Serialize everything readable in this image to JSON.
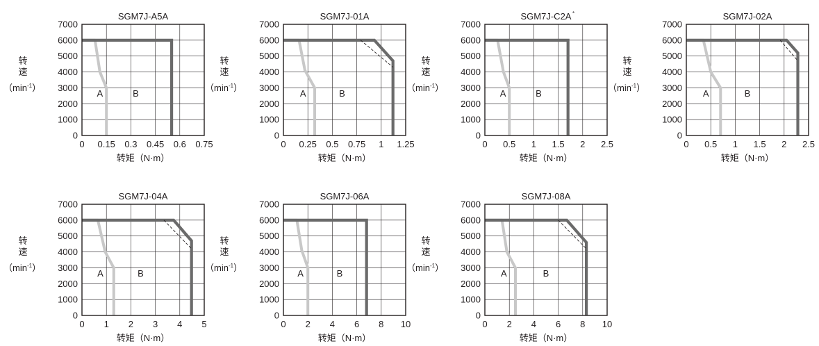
{
  "chart_data": [
    {
      "type": "line",
      "title": "SGM7J-A5A",
      "xlabel": "转矩（N·m）",
      "ylabel": [
        "转",
        "速",
        "（min",
        "-1",
        "）"
      ],
      "xlim": [
        0,
        0.75
      ],
      "ylim": [
        0,
        7000
      ],
      "xticks": [
        "0",
        "0.15",
        "0.3",
        "0.45",
        "0.6",
        "0.75"
      ],
      "yticks": [
        "0",
        "1000",
        "2000",
        "3000",
        "4000",
        "5000",
        "6000",
        "7000"
      ],
      "grid": true,
      "region_labels": [
        {
          "text": "A",
          "x": 0.11,
          "y": 2450
        },
        {
          "text": "B",
          "x": 0.33,
          "y": 2450
        }
      ],
      "series": [
        {
          "kind": "continuous",
          "color": "#c8c8c8",
          "points": [
            [
              0,
              6000
            ],
            [
              0.08,
              6000
            ],
            [
              0.11,
              4000
            ],
            [
              0.15,
              3000
            ],
            [
              0.15,
              0
            ]
          ]
        },
        {
          "kind": "intermittent",
          "color": "#6a6a6a",
          "points": [
            [
              0,
              6000
            ],
            [
              0.55,
              6000
            ],
            [
              0.55,
              0
            ]
          ]
        },
        {
          "kind": "dashed",
          "color": "#231f20",
          "points": []
        }
      ]
    },
    {
      "type": "line",
      "title": "SGM7J-01A",
      "xlabel": "转矩（N·m）",
      "ylabel": [
        "转",
        "速",
        "（min",
        "-1",
        "）"
      ],
      "xlim": [
        0,
        1.25
      ],
      "ylim": [
        0,
        7000
      ],
      "xticks": [
        "0",
        "0.25",
        "0.5",
        "0.75",
        "1",
        "1.25"
      ],
      "yticks": [
        "0",
        "1000",
        "2000",
        "3000",
        "4000",
        "5000",
        "6000",
        "7000"
      ],
      "grid": true,
      "region_labels": [
        {
          "text": "A",
          "x": 0.2,
          "y": 2450
        },
        {
          "text": "B",
          "x": 0.6,
          "y": 2450
        }
      ],
      "series": [
        {
          "kind": "continuous",
          "color": "#c8c8c8",
          "points": [
            [
              0,
              6000
            ],
            [
              0.16,
              6000
            ],
            [
              0.22,
              4100
            ],
            [
              0.32,
              3000
            ],
            [
              0.32,
              0
            ]
          ]
        },
        {
          "kind": "intermittent",
          "color": "#6a6a6a",
          "points": [
            [
              0,
              6000
            ],
            [
              0.93,
              6000
            ],
            [
              1.12,
              4700
            ],
            [
              1.12,
              0
            ]
          ]
        },
        {
          "kind": "dashed",
          "color": "#231f20",
          "points": [
            [
              0.79,
              6000
            ],
            [
              1.12,
              4300
            ]
          ]
        }
      ]
    },
    {
      "type": "line",
      "title": "SGM7J-C2A",
      "title_mark": "*",
      "xlabel": "转矩（N·m）",
      "ylabel": [
        "转",
        "速",
        "（min",
        "-1",
        "）"
      ],
      "xlim": [
        0,
        2.5
      ],
      "ylim": [
        0,
        7000
      ],
      "xticks": [
        "0",
        "0.5",
        "1",
        "1.5",
        "2",
        "2.5"
      ],
      "yticks": [
        "0",
        "1000",
        "2000",
        "3000",
        "4000",
        "5000",
        "6000",
        "7000"
      ],
      "grid": true,
      "region_labels": [
        {
          "text": "A",
          "x": 0.37,
          "y": 2450
        },
        {
          "text": "B",
          "x": 1.1,
          "y": 2450
        }
      ],
      "series": [
        {
          "kind": "continuous",
          "color": "#c8c8c8",
          "points": [
            [
              0,
              6000
            ],
            [
              0.26,
              6000
            ],
            [
              0.38,
              4000
            ],
            [
              0.5,
              3000
            ],
            [
              0.5,
              0
            ]
          ]
        },
        {
          "kind": "intermittent",
          "color": "#6a6a6a",
          "points": [
            [
              0,
              6000
            ],
            [
              1.7,
              6000
            ],
            [
              1.7,
              0
            ]
          ]
        },
        {
          "kind": "dashed",
          "color": "#231f20",
          "points": []
        }
      ]
    },
    {
      "type": "line",
      "title": "SGM7J-02A",
      "xlabel": "转矩（N·m）",
      "ylabel": [
        "转",
        "速",
        "（min",
        "-1",
        "）"
      ],
      "xlim": [
        0,
        2.5
      ],
      "ylim": [
        0,
        7000
      ],
      "xticks": [
        "0",
        "0.5",
        "1",
        "1.5",
        "2",
        "2.5"
      ],
      "yticks": [
        "0",
        "1000",
        "2000",
        "3000",
        "4000",
        "5000",
        "6000",
        "7000"
      ],
      "grid": true,
      "region_labels": [
        {
          "text": "A",
          "x": 0.4,
          "y": 2450
        },
        {
          "text": "B",
          "x": 1.25,
          "y": 2450
        }
      ],
      "series": [
        {
          "kind": "continuous",
          "color": "#c8c8c8",
          "points": [
            [
              0,
              6000
            ],
            [
              0.35,
              6000
            ],
            [
              0.5,
              4000
            ],
            [
              0.7,
              3000
            ],
            [
              0.7,
              0
            ]
          ]
        },
        {
          "kind": "intermittent",
          "color": "#6a6a6a",
          "points": [
            [
              0,
              6000
            ],
            [
              2.05,
              6000
            ],
            [
              2.28,
              5200
            ],
            [
              2.28,
              0
            ]
          ]
        },
        {
          "kind": "dashed",
          "color": "#231f20",
          "points": [
            [
              1.92,
              6000
            ],
            [
              2.28,
              4700
            ]
          ]
        }
      ]
    },
    {
      "type": "line",
      "title": "SGM7J-04A",
      "xlabel": "转矩（N·m）",
      "ylabel": [
        "转",
        "速",
        "（min",
        "-1",
        "）"
      ],
      "xlim": [
        0,
        5
      ],
      "ylim": [
        0,
        7000
      ],
      "xticks": [
        "0",
        "1",
        "2",
        "3",
        "4",
        "5"
      ],
      "yticks": [
        "0",
        "1000",
        "2000",
        "3000",
        "4000",
        "5000",
        "6000",
        "7000"
      ],
      "grid": true,
      "region_labels": [
        {
          "text": "A",
          "x": 0.75,
          "y": 2450
        },
        {
          "text": "B",
          "x": 2.4,
          "y": 2450
        }
      ],
      "series": [
        {
          "kind": "continuous",
          "color": "#c8c8c8",
          "points": [
            [
              0,
              6000
            ],
            [
              0.65,
              6000
            ],
            [
              0.95,
              4000
            ],
            [
              1.3,
              3000
            ],
            [
              1.3,
              0
            ]
          ]
        },
        {
          "kind": "intermittent",
          "color": "#6a6a6a",
          "points": [
            [
              0,
              6000
            ],
            [
              3.75,
              6000
            ],
            [
              4.48,
              4700
            ],
            [
              4.48,
              0
            ]
          ]
        },
        {
          "kind": "dashed",
          "color": "#231f20",
          "points": [
            [
              3.35,
              6000
            ],
            [
              4.48,
              4200
            ]
          ]
        }
      ]
    },
    {
      "type": "line",
      "title": "SGM7J-06A",
      "xlabel": "转矩（N·m）",
      "ylabel": [
        "转",
        "速",
        "（min",
        "-1",
        "）"
      ],
      "xlim": [
        0,
        10
      ],
      "ylim": [
        0,
        7000
      ],
      "xticks": [
        "0",
        "2",
        "4",
        "6",
        "8",
        "10"
      ],
      "yticks": [
        "0",
        "1000",
        "2000",
        "3000",
        "4000",
        "5000",
        "6000",
        "7000"
      ],
      "grid": true,
      "region_labels": [
        {
          "text": "A",
          "x": 1.4,
          "y": 2450
        },
        {
          "text": "B",
          "x": 4.6,
          "y": 2450
        }
      ],
      "series": [
        {
          "kind": "continuous",
          "color": "#c8c8c8",
          "points": [
            [
              0,
              6000
            ],
            [
              1.1,
              6000
            ],
            [
              1.5,
              4100
            ],
            [
              2.0,
              3000
            ],
            [
              2.0,
              0
            ]
          ]
        },
        {
          "kind": "intermittent",
          "color": "#6a6a6a",
          "points": [
            [
              0,
              6000
            ],
            [
              6.8,
              6000
            ],
            [
              6.8,
              0
            ]
          ]
        },
        {
          "kind": "dashed",
          "color": "#231f20",
          "points": []
        }
      ]
    },
    {
      "type": "line",
      "title": "SGM7J-08A",
      "xlabel": "转矩（N·m）",
      "ylabel": [
        "转",
        "速",
        "（min",
        "-1",
        "）"
      ],
      "xlim": [
        0,
        10
      ],
      "ylim": [
        0,
        7000
      ],
      "xticks": [
        "0",
        "2",
        "4",
        "6",
        "8",
        "10"
      ],
      "yticks": [
        "0",
        "1000",
        "2000",
        "3000",
        "4000",
        "5000",
        "6000",
        "7000"
      ],
      "grid": true,
      "region_labels": [
        {
          "text": "A",
          "x": 1.55,
          "y": 2450
        },
        {
          "text": "B",
          "x": 5.0,
          "y": 2450
        }
      ],
      "series": [
        {
          "kind": "continuous",
          "color": "#c8c8c8",
          "points": [
            [
              0,
              6000
            ],
            [
              1.4,
              6000
            ],
            [
              1.8,
              4000
            ],
            [
              2.5,
              3000
            ],
            [
              2.5,
              0
            ]
          ]
        },
        {
          "kind": "intermittent",
          "color": "#6a6a6a",
          "points": [
            [
              0,
              6000
            ],
            [
              6.7,
              6000
            ],
            [
              8.3,
              4600
            ],
            [
              8.3,
              0
            ]
          ]
        },
        {
          "kind": "dashed",
          "color": "#231f20",
          "points": [
            [
              6.0,
              6000
            ],
            [
              8.3,
              4200
            ]
          ]
        }
      ]
    }
  ]
}
